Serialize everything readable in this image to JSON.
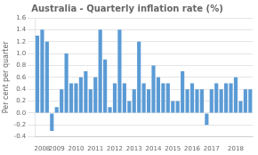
{
  "chart_data": {
    "type": "bar",
    "title": "Australia - Quarterly inflation rate (%)",
    "ylabel": "Per cent per quarter",
    "categories": [
      null,
      "2008",
      null,
      null,
      "2009",
      null,
      null,
      null,
      "2010",
      null,
      null,
      null,
      "2011",
      null,
      null,
      null,
      "2012",
      null,
      null,
      null,
      "2013",
      null,
      null,
      null,
      "2014",
      null,
      null,
      null,
      "2015",
      null,
      null,
      null,
      "2016",
      null,
      null,
      null,
      "2017",
      null,
      null,
      null,
      null,
      "2018",
      null,
      null,
      null
    ],
    "values": [
      1.3,
      1.4,
      1.2,
      -0.3,
      0.1,
      0.4,
      1.0,
      0.5,
      0.5,
      0.6,
      0.7,
      0.4,
      0.6,
      1.4,
      0.9,
      0.1,
      0.5,
      1.4,
      0.5,
      0.2,
      0.4,
      1.2,
      0.5,
      0.4,
      0.8,
      0.6,
      0.5,
      0.5,
      0.2,
      0.2,
      0.7,
      0.4,
      0.5,
      0.4,
      0.4,
      -0.2,
      0.4,
      0.5,
      0.4,
      0.5,
      0.5,
      0.6,
      0.2,
      0.4,
      0.4
    ],
    "color": "#5B9BD5",
    "ylim": [
      -0.4,
      1.6
    ],
    "yticks": [
      -0.4,
      -0.2,
      {
        "value": 0,
        "label": "0.0"
      },
      0.2,
      0.4,
      0.6,
      0.8,
      {
        "value": 1,
        "label": "1.0"
      },
      1.2,
      1.4,
      1.6
    ],
    "grid": true
  }
}
